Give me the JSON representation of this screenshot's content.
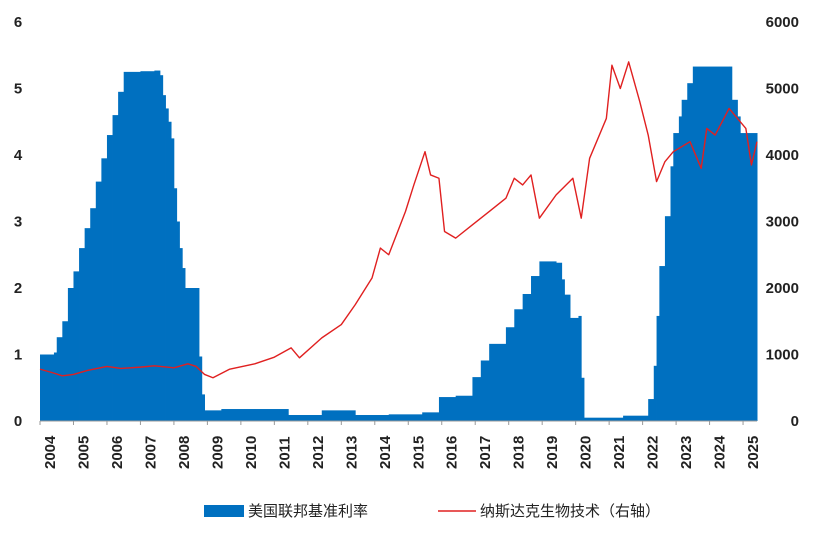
{
  "chart_data": {
    "type": "bar+line",
    "x_range": [
      "2004-01",
      "2025-06"
    ],
    "x_tick_labels": [
      "2004",
      "2005",
      "2006",
      "2007",
      "2008",
      "2009",
      "2010",
      "2011",
      "2012",
      "2013",
      "2014",
      "2015",
      "2016",
      "2017",
      "2018",
      "2019",
      "2020",
      "2021",
      "2022",
      "2023",
      "2024",
      "2025"
    ],
    "y_left": {
      "ylim": [
        0,
        6
      ],
      "ticks": [
        "0",
        "1",
        "2",
        "3",
        "4",
        "5",
        "6"
      ]
    },
    "y_right": {
      "ylim": [
        0,
        6000
      ],
      "ticks": [
        "0",
        "1000",
        "2000",
        "3000",
        "4000",
        "5000",
        "6000"
      ]
    },
    "grid": false,
    "legend_position": "bottom",
    "series": [
      {
        "name": "美国联邦基准利率",
        "kind": "bar",
        "axis": "left",
        "color": "#0070C0",
        "points": [
          [
            "2004-01",
            1.0
          ],
          [
            "2004-06",
            1.03
          ],
          [
            "2004-07",
            1.26
          ],
          [
            "2004-09",
            1.5
          ],
          [
            "2004-11",
            2.0
          ],
          [
            "2005-01",
            2.25
          ],
          [
            "2005-03",
            2.6
          ],
          [
            "2005-05",
            2.9
          ],
          [
            "2005-07",
            3.2
          ],
          [
            "2005-09",
            3.6
          ],
          [
            "2005-11",
            3.95
          ],
          [
            "2006-01",
            4.3
          ],
          [
            "2006-03",
            4.6
          ],
          [
            "2006-05",
            4.95
          ],
          [
            "2006-07",
            5.25
          ],
          [
            "2007-01",
            5.26
          ],
          [
            "2007-06",
            5.27
          ],
          [
            "2007-08",
            5.2
          ],
          [
            "2007-09",
            4.9
          ],
          [
            "2007-10",
            4.7
          ],
          [
            "2007-11",
            4.5
          ],
          [
            "2007-12",
            4.25
          ],
          [
            "2008-01",
            3.5
          ],
          [
            "2008-02",
            3.0
          ],
          [
            "2008-03",
            2.6
          ],
          [
            "2008-04",
            2.3
          ],
          [
            "2008-05",
            2.0
          ],
          [
            "2008-07",
            2.0
          ],
          [
            "2008-09",
            2.0
          ],
          [
            "2008-10",
            0.97
          ],
          [
            "2008-11",
            0.4
          ],
          [
            "2008-12",
            0.16
          ],
          [
            "2009-06",
            0.18
          ],
          [
            "2010-06",
            0.18
          ],
          [
            "2011-06",
            0.09
          ],
          [
            "2012-06",
            0.16
          ],
          [
            "2013-06",
            0.09
          ],
          [
            "2014-06",
            0.1
          ],
          [
            "2015-06",
            0.13
          ],
          [
            "2015-12",
            0.36
          ],
          [
            "2016-06",
            0.38
          ],
          [
            "2016-12",
            0.66
          ],
          [
            "2017-03",
            0.91
          ],
          [
            "2017-06",
            1.16
          ],
          [
            "2017-12",
            1.41
          ],
          [
            "2018-03",
            1.68
          ],
          [
            "2018-06",
            1.91
          ],
          [
            "2018-09",
            2.18
          ],
          [
            "2018-12",
            2.4
          ],
          [
            "2019-06",
            2.38
          ],
          [
            "2019-08",
            2.13
          ],
          [
            "2019-09",
            1.9
          ],
          [
            "2019-11",
            1.55
          ],
          [
            "2020-02",
            1.58
          ],
          [
            "2020-03",
            0.65
          ],
          [
            "2020-04",
            0.05
          ],
          [
            "2021-06",
            0.08
          ],
          [
            "2022-03",
            0.33
          ],
          [
            "2022-05",
            0.83
          ],
          [
            "2022-06",
            1.58
          ],
          [
            "2022-07",
            2.33
          ],
          [
            "2022-09",
            3.08
          ],
          [
            "2022-11",
            3.83
          ],
          [
            "2022-12",
            4.33
          ],
          [
            "2023-02",
            4.58
          ],
          [
            "2023-03",
            4.83
          ],
          [
            "2023-05",
            5.08
          ],
          [
            "2023-07",
            5.33
          ],
          [
            "2024-08",
            5.33
          ],
          [
            "2024-09",
            4.83
          ],
          [
            "2024-11",
            4.58
          ],
          [
            "2024-12",
            4.33
          ],
          [
            "2025-06",
            4.33
          ]
        ]
      },
      {
        "name": "纳斯达克生物技术（右轴）",
        "kind": "line",
        "axis": "right",
        "color": "#E02020",
        "points": [
          [
            "2004-01",
            780
          ],
          [
            "2004-06",
            720
          ],
          [
            "2004-09",
            680
          ],
          [
            "2005-01",
            700
          ],
          [
            "2005-06",
            760
          ],
          [
            "2006-01",
            820
          ],
          [
            "2006-06",
            790
          ],
          [
            "2007-01",
            810
          ],
          [
            "2007-06",
            830
          ],
          [
            "2008-01",
            800
          ],
          [
            "2008-06",
            860
          ],
          [
            "2008-09",
            820
          ],
          [
            "2008-12",
            700
          ],
          [
            "2009-03",
            650
          ],
          [
            "2009-09",
            780
          ],
          [
            "2010-06",
            860
          ],
          [
            "2011-01",
            960
          ],
          [
            "2011-07",
            1100
          ],
          [
            "2011-10",
            950
          ],
          [
            "2012-06",
            1250
          ],
          [
            "2013-01",
            1450
          ],
          [
            "2013-06",
            1750
          ],
          [
            "2013-12",
            2150
          ],
          [
            "2014-03",
            2600
          ],
          [
            "2014-06",
            2500
          ],
          [
            "2014-12",
            3150
          ],
          [
            "2015-03",
            3550
          ],
          [
            "2015-07",
            4050
          ],
          [
            "2015-09",
            3700
          ],
          [
            "2015-12",
            3650
          ],
          [
            "2016-02",
            2850
          ],
          [
            "2016-06",
            2750
          ],
          [
            "2016-12",
            2950
          ],
          [
            "2017-06",
            3150
          ],
          [
            "2017-12",
            3350
          ],
          [
            "2018-03",
            3650
          ],
          [
            "2018-06",
            3550
          ],
          [
            "2018-09",
            3700
          ],
          [
            "2018-12",
            3050
          ],
          [
            "2019-06",
            3400
          ],
          [
            "2019-12",
            3650
          ],
          [
            "2020-03",
            3050
          ],
          [
            "2020-06",
            3950
          ],
          [
            "2020-12",
            4550
          ],
          [
            "2021-02",
            5350
          ],
          [
            "2021-05",
            5000
          ],
          [
            "2021-08",
            5400
          ],
          [
            "2021-12",
            4800
          ],
          [
            "2022-03",
            4300
          ],
          [
            "2022-06",
            3600
          ],
          [
            "2022-09",
            3900
          ],
          [
            "2022-12",
            4050
          ],
          [
            "2023-06",
            4200
          ],
          [
            "2023-10",
            3800
          ],
          [
            "2023-12",
            4400
          ],
          [
            "2024-03",
            4300
          ],
          [
            "2024-08",
            4700
          ],
          [
            "2024-11",
            4550
          ],
          [
            "2025-02",
            4400
          ],
          [
            "2025-04",
            3850
          ],
          [
            "2025-06",
            4200
          ]
        ]
      }
    ]
  }
}
